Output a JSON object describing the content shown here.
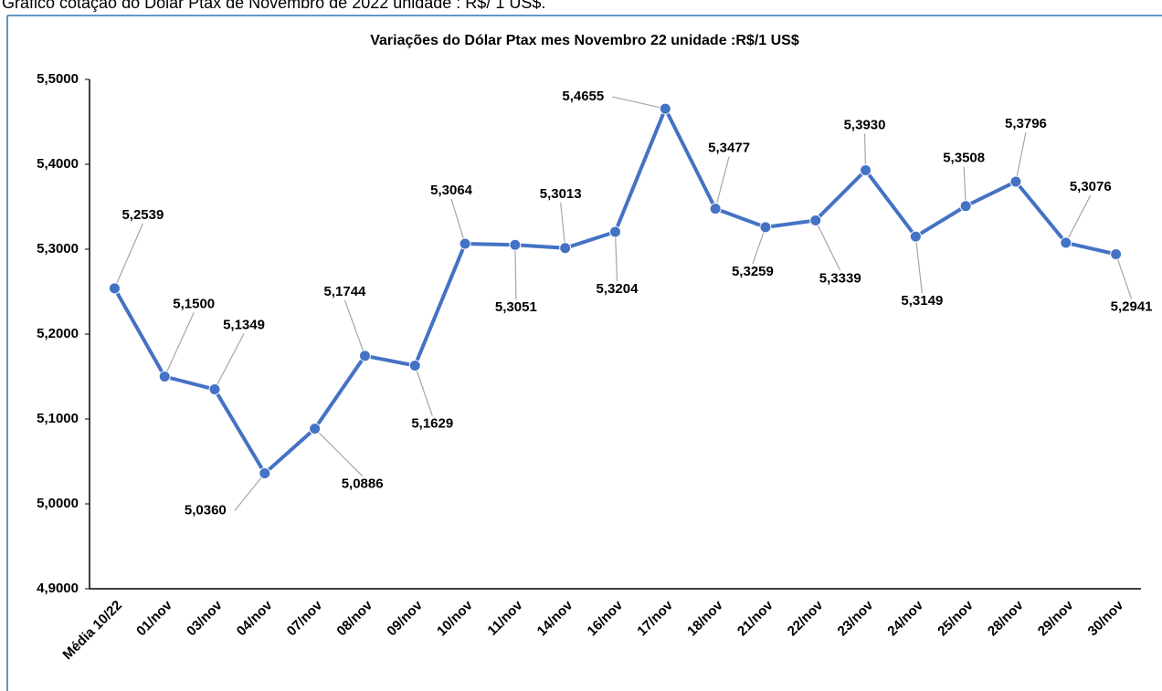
{
  "page_heading": "Gráfico cotação do Dólar Ptax de Novembro de 2022 unidade : R$/ 1 US$.",
  "chart_data": {
    "type": "line",
    "title": "Variações do Dólar Ptax mes Novembro 22 unidade :R$/1 US$",
    "categories": [
      "Média 10/22",
      "01/nov",
      "03/nov",
      "04/nov",
      "07/nov",
      "08/nov",
      "09/nov",
      "10/nov",
      "11/nov",
      "14/nov",
      "16/nov",
      "17/nov",
      "18/nov",
      "21/nov",
      "22/nov",
      "23/nov",
      "24/nov",
      "25/nov",
      "28/nov",
      "29/nov",
      "30/nov"
    ],
    "values": [
      5.2539,
      5.15,
      5.1349,
      5.036,
      5.0886,
      5.1744,
      5.1629,
      5.3064,
      5.3051,
      5.3013,
      5.3204,
      5.4655,
      5.3477,
      5.3259,
      5.3339,
      5.393,
      5.3149,
      5.3508,
      5.3796,
      5.3076,
      5.2941
    ],
    "value_labels": [
      "5,2539",
      "5,1500",
      "5,1349",
      "5,0360",
      "5,0886",
      "5,1744",
      "5,1629",
      "5,3064",
      "5,3051",
      "5,3013",
      "5,3204",
      "5,4655",
      "5,3477",
      "5,3259",
      "5,3339",
      "5,3930",
      "5,3149",
      "5,3508",
      "5,3796",
      "5,3076",
      "5,2941"
    ],
    "color": "#4472c4",
    "ylim": [
      4.9,
      5.5
    ],
    "yticks": [
      {
        "value": 4.9,
        "label": "4,9000"
      },
      {
        "value": 5.0,
        "label": "5,0000"
      },
      {
        "value": 5.1,
        "label": "5,1000"
      },
      {
        "value": 5.2,
        "label": "5,2000"
      },
      {
        "value": 5.3,
        "label": "5,3000"
      },
      {
        "value": 5.4,
        "label": "5,4000"
      },
      {
        "value": 5.5,
        "label": "5,5000"
      }
    ]
  }
}
